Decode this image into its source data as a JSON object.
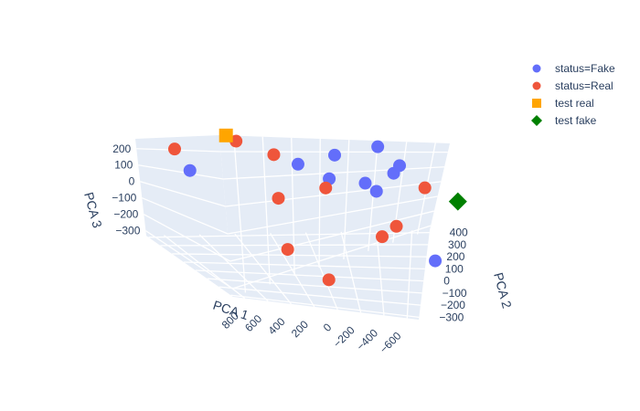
{
  "chart_data": {
    "type": "scatter3d",
    "axes": {
      "x": {
        "label": "PCA 1",
        "ticks": [
          "800",
          "600",
          "400",
          "200",
          "0",
          "−200",
          "−400",
          "−600"
        ],
        "range": [
          -700,
          900
        ]
      },
      "y": {
        "label": "PCA 2",
        "ticks": [
          "−300",
          "−200",
          "−100",
          "0",
          "100",
          "200",
          "300",
          "400"
        ],
        "range": [
          -320,
          420
        ]
      },
      "z": {
        "label": "PCA 3",
        "ticks": [
          "200",
          "100",
          "0",
          "−100",
          "−200",
          "−300"
        ],
        "range": [
          -330,
          260
        ]
      }
    },
    "grid": true,
    "legend_position": "top-right",
    "series": [
      {
        "name": "status=Fake",
        "marker": "circle",
        "color": "#636efa",
        "points": [
          {
            "x": 700,
            "y": -250,
            "z": 90
          },
          {
            "x": 70,
            "y": -280,
            "z": 100
          },
          {
            "x": -150,
            "y": -300,
            "z": 140
          },
          {
            "x": -400,
            "y": -310,
            "z": 180
          },
          {
            "x": -40,
            "y": -180,
            "z": 60
          },
          {
            "x": -230,
            "y": -160,
            "z": 40
          },
          {
            "x": -280,
            "y": -140,
            "z": 0
          },
          {
            "x": -450,
            "y": -250,
            "z": 50
          },
          {
            "x": -490,
            "y": -260,
            "z": 90
          },
          {
            "x": -400,
            "y": 180,
            "z": -260
          }
        ]
      },
      {
        "name": "status=Real",
        "marker": "circle",
        "color": "#ef553b",
        "points": [
          {
            "x": 760,
            "y": -290,
            "z": 200
          },
          {
            "x": 400,
            "y": -310,
            "z": 230
          },
          {
            "x": 220,
            "y": -260,
            "z": 170
          },
          {
            "x": 300,
            "y": -100,
            "z": -10
          },
          {
            "x": 400,
            "y": 130,
            "z": -200
          },
          {
            "x": -40,
            "y": -210,
            "z": -10
          },
          {
            "x": -140,
            "y": 120,
            "z": -140
          },
          {
            "x": -260,
            "y": 60,
            "z": -110
          },
          {
            "x": -560,
            "y": -150,
            "z": 10
          },
          {
            "x": 280,
            "y": 300,
            "z": -300
          }
        ]
      },
      {
        "name": "test real",
        "marker": "square",
        "color": "#ffa500",
        "points": [
          {
            "x": 450,
            "y": -320,
            "z": 260
          }
        ]
      },
      {
        "name": "test fake",
        "marker": "diamond",
        "color": "#008000",
        "points": [
          {
            "x": -700,
            "y": -80,
            "z": -40
          }
        ]
      }
    ]
  }
}
